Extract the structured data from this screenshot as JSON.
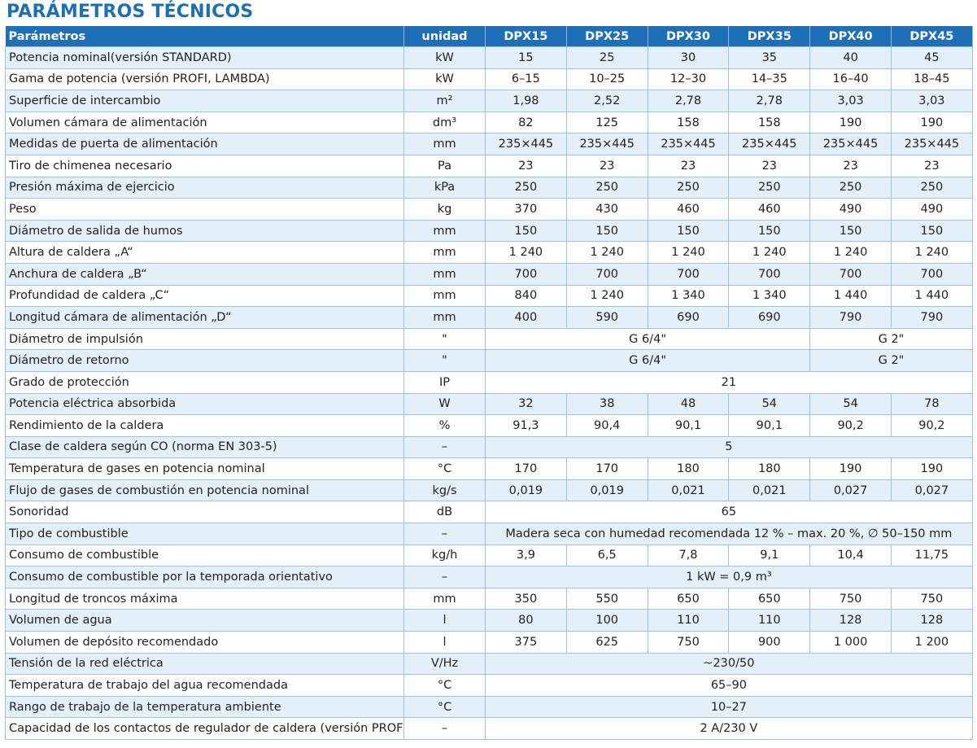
{
  "title": "PARÁMETROS TÉCNICOS",
  "header": {
    "param": "Parámetros",
    "unit": "unidad",
    "models": [
      "DPX15",
      "DPX25",
      "DPX30",
      "DPX35",
      "DPX40",
      "DPX45"
    ]
  },
  "rows": [
    {
      "param": "Potencia nominal(versión STANDARD)",
      "unit": "kW",
      "values": [
        "15",
        "25",
        "30",
        "35",
        "40",
        "45"
      ]
    },
    {
      "param": "Gama de potencia (versión PROFI, LAMBDA)",
      "unit": "kW",
      "values": [
        "6–15",
        "10–25",
        "12–30",
        "14–35",
        "16–40",
        "18–45"
      ]
    },
    {
      "param": "Superficie de intercambio",
      "unit": "m²",
      "values": [
        "1,98",
        "2,52",
        "2,78",
        "2,78",
        "3,03",
        "3,03"
      ]
    },
    {
      "param": "Volumen cámara de alimentación",
      "unit": "dm³",
      "values": [
        "82",
        "125",
        "158",
        "158",
        "190",
        "190"
      ]
    },
    {
      "param": "Medidas de puerta de alimentación",
      "unit": "mm",
      "values": [
        "235×445",
        "235×445",
        "235×445",
        "235×445",
        "235×445",
        "235×445"
      ]
    },
    {
      "param": "Tiro de chimenea necesario",
      "unit": "Pa",
      "values": [
        "23",
        "23",
        "23",
        "23",
        "23",
        "23"
      ]
    },
    {
      "param": "Presión máxima de ejercicio",
      "unit": "kPa",
      "values": [
        "250",
        "250",
        "250",
        "250",
        "250",
        "250"
      ]
    },
    {
      "param": "Peso",
      "unit": "kg",
      "values": [
        "370",
        "430",
        "460",
        "460",
        "490",
        "490"
      ]
    },
    {
      "param": "Diámetro de salida de humos",
      "unit": "mm",
      "values": [
        "150",
        "150",
        "150",
        "150",
        "150",
        "150"
      ]
    },
    {
      "param": "Altura de caldera „A“",
      "unit": "mm",
      "values": [
        "1 240",
        "1 240",
        "1 240",
        "1 240",
        "1 240",
        "1 240"
      ]
    },
    {
      "param": "Anchura de caldera „B“",
      "unit": "mm",
      "values": [
        "700",
        "700",
        "700",
        "700",
        "700",
        "700"
      ]
    },
    {
      "param": "Profundidad de caldera „C“",
      "unit": "mm",
      "values": [
        "840",
        "1 240",
        "1 340",
        "1 340",
        "1 440",
        "1 440"
      ]
    },
    {
      "param": "Longitud cámara de alimentación „D“",
      "unit": "mm",
      "values": [
        "400",
        "590",
        "690",
        "690",
        "790",
        "790"
      ]
    },
    {
      "param": "Diámetro de impulsión",
      "unit": "\"",
      "values": [
        "G 6/4\"",
        "G 2\""
      ]
    },
    {
      "param": "Diámetro de retorno",
      "unit": "\"",
      "values": [
        "G 6/4\"",
        "G 2\""
      ]
    },
    {
      "param": "Grado de protección",
      "unit": "IP",
      "values": [
        "21"
      ]
    },
    {
      "param": "Potencia eléctrica absorbida",
      "unit": "W",
      "values": [
        "32",
        "38",
        "48",
        "54",
        "54",
        "78"
      ]
    },
    {
      "param": "Rendimiento de la caldera",
      "unit": "%",
      "values": [
        "91,3",
        "90,4",
        "90,1",
        "90,1",
        "90,2",
        "90,2"
      ]
    },
    {
      "param": "Clase de caldera según CO (norma EN 303-5)",
      "unit": "–",
      "values": [
        "5"
      ]
    },
    {
      "param": "Temperatura de gases en potencia nominal",
      "unit": "°C",
      "values": [
        "170",
        "170",
        "180",
        "180",
        "190",
        "190"
      ]
    },
    {
      "param": "Flujo de gases de combustión en potencia nominal",
      "unit": "kg/s",
      "values": [
        "0,019",
        "0,019",
        "0,021",
        "0,021",
        "0,027",
        "0,027"
      ]
    },
    {
      "param": "Sonoridad",
      "unit": "dB",
      "values": [
        "65"
      ]
    },
    {
      "param": "Tipo de combustible",
      "unit": "–",
      "values": [
        "Madera seca con humedad recomendada 12 % – max. 20 %, ∅ 50–150 mm"
      ]
    },
    {
      "param": "Consumo de combustible",
      "unit": "kg/h",
      "values": [
        "3,9",
        "6,5",
        "7,8",
        "9,1",
        "10,4",
        "11,75"
      ]
    },
    {
      "param": "Consumo de combustible por la temporada orientativo",
      "unit": "–",
      "values": [
        "1 kW = 0,9 m³"
      ]
    },
    {
      "param": "Longitud de troncos máxima",
      "unit": "mm",
      "values": [
        "350",
        "550",
        "650",
        "650",
        "750",
        "750"
      ]
    },
    {
      "param": "Volumen de agua",
      "unit": "l",
      "values": [
        "80",
        "100",
        "110",
        "110",
        "128",
        "128"
      ]
    },
    {
      "param": "Volumen de depósito recomendado",
      "unit": "l",
      "values": [
        "375",
        "625",
        "750",
        "900",
        "1 000",
        "1 200"
      ]
    },
    {
      "param": "Tensión de la red eléctrica",
      "unit": "V/Hz",
      "values": [
        "~230/50"
      ]
    },
    {
      "param": "Temperatura de trabajo del agua recomendada",
      "unit": "°C",
      "values": [
        "65–90"
      ]
    },
    {
      "param": "Rango de trabajo de la temperatura ambiente",
      "unit": "°C",
      "values": [
        "10–27"
      ]
    },
    {
      "param": "Capacidad de los contactos de regulador de caldera (versión PROFI)",
      "unit": "–",
      "values": [
        "2 A/230 V"
      ]
    }
  ]
}
